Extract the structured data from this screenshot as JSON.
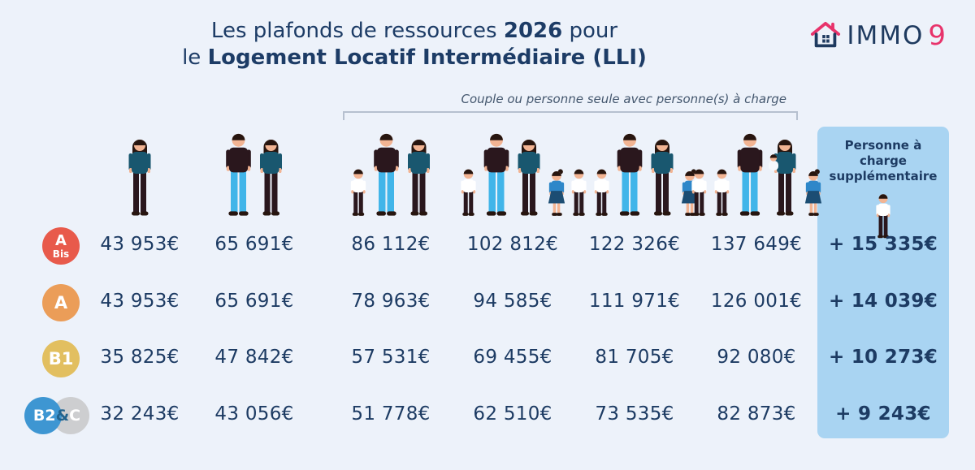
{
  "page_bg": "#edf2fa",
  "header": {
    "line1_pre": "Les plafonds de ressources ",
    "line1_bold": "2026",
    "line1_post": " pour",
    "line2_pre": "le ",
    "line2_bold": "Logement Locatif Intermédiaire (LLI)"
  },
  "logo": {
    "text": "IMMO",
    "accent_digit": "9",
    "navy": "#1e3a5f",
    "pink": "#e8336b"
  },
  "bracket_label": "Couple ou personne seule avec personne(s) à charge",
  "extra_column": {
    "header": "Personne à charge supplémentaire",
    "bg": "#a9d4f2"
  },
  "household_columns": [
    {
      "name": "single-person",
      "members": [
        "woman"
      ]
    },
    {
      "name": "couple",
      "members": [
        "man",
        "woman"
      ]
    },
    {
      "name": "couple-1-dependant",
      "members": [
        "boy",
        "man",
        "woman"
      ]
    },
    {
      "name": "couple-2-dependants",
      "members": [
        "boy",
        "man",
        "woman",
        "girl"
      ]
    },
    {
      "name": "couple-3-dependants",
      "members": [
        "boy",
        "boy",
        "man",
        "woman",
        "girl"
      ]
    },
    {
      "name": "couple-4-dependants",
      "members": [
        "boy",
        "boy",
        "man",
        "woman-baby",
        "girl"
      ]
    }
  ],
  "zones": [
    {
      "id": "abis",
      "label": "A Bis",
      "badge": {
        "type": "single",
        "line1": "A",
        "line2": "Bis",
        "color": "#e85a4b"
      },
      "values": [
        "43 953€",
        "65 691€",
        "86 112€",
        "102 812€",
        "122 326€",
        "137 649€"
      ],
      "extra": "+ 15 335€"
    },
    {
      "id": "a",
      "label": "A",
      "badge": {
        "type": "single",
        "line1": "A",
        "color": "#eb9d58"
      },
      "values": [
        "43 953€",
        "65 691€",
        "78 963€",
        "94 585€",
        "111 971€",
        "126 001€"
      ],
      "extra": "+ 14 039€"
    },
    {
      "id": "b1",
      "label": "B1",
      "badge": {
        "type": "single",
        "line1": "B1",
        "color": "#e2bf60"
      },
      "values": [
        "35 825€",
        "47 842€",
        "57 531€",
        "69 455€",
        "81 705€",
        "92 080€"
      ],
      "extra": "+ 10 273€"
    },
    {
      "id": "b2c",
      "label": "B2&C",
      "badge": {
        "type": "double",
        "left_text": "B2",
        "amp": "&",
        "right_text": "C",
        "left_color": "#3e96d2",
        "right_color": "#cdced0",
        "amp_color": "#21638e"
      },
      "values": [
        "32 243€",
        "43 056€",
        "51 778€",
        "62 510€",
        "73 535€",
        "82 873€"
      ],
      "extra": "+ 9 243€"
    }
  ],
  "chart_data": {
    "type": "table",
    "title": "Les plafonds de ressources 2026 pour le Logement Locatif Intermédiaire (LLI)",
    "columns": [
      "Personne seule",
      "Couple",
      "Couple ou personne seule avec 1 personne à charge",
      "Couple ou personne seule avec 2 personnes à charge",
      "Couple ou personne seule avec 3 personnes à charge",
      "Couple ou personne seule avec 4 personnes à charge",
      "Personne à charge supplémentaire"
    ],
    "rows": [
      {
        "zone": "A Bis",
        "values": [
          43953,
          65691,
          86112,
          102812,
          122326,
          137649
        ],
        "extra_per_person": 15335
      },
      {
        "zone": "A",
        "values": [
          43953,
          65691,
          78963,
          94585,
          111971,
          126001
        ],
        "extra_per_person": 14039
      },
      {
        "zone": "B1",
        "values": [
          35825,
          47842,
          57531,
          69455,
          81705,
          92080
        ],
        "extra_per_person": 10273
      },
      {
        "zone": "B2&C",
        "values": [
          32243,
          43056,
          51778,
          62510,
          73535,
          82873
        ],
        "extra_per_person": 9243
      }
    ],
    "currency": "EUR"
  }
}
